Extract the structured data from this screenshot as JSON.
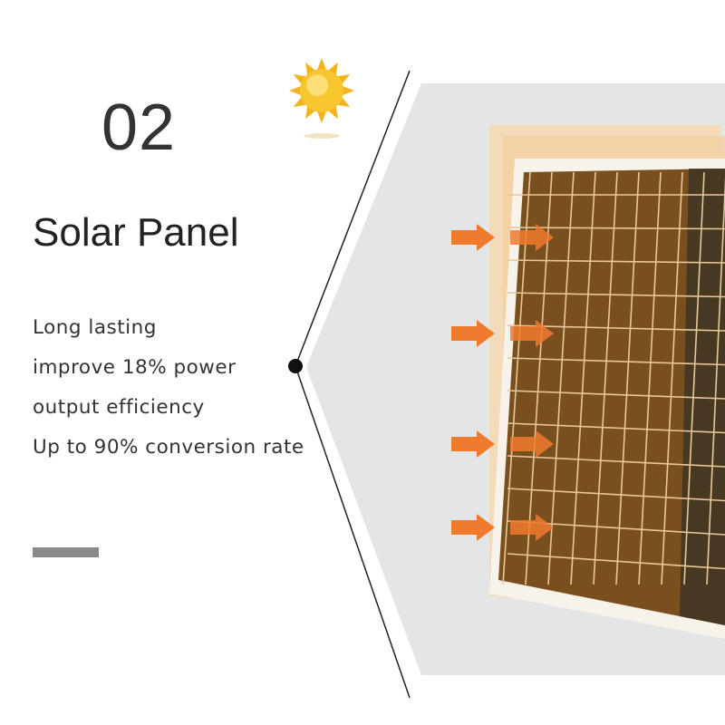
{
  "number": "02",
  "title": "Solar Panel",
  "features": [
    "Long lasting",
    "improve 18% power",
    "output efficiency",
    "Up to 90% conversion rate"
  ],
  "icons": {
    "sun": "sun-icon",
    "arrows": "arrow-right-icon"
  },
  "colors": {
    "accent": "#f07a2e",
    "panel": "#7a4f1e",
    "background_panel": "#e4e5e7",
    "text": "#333333"
  }
}
